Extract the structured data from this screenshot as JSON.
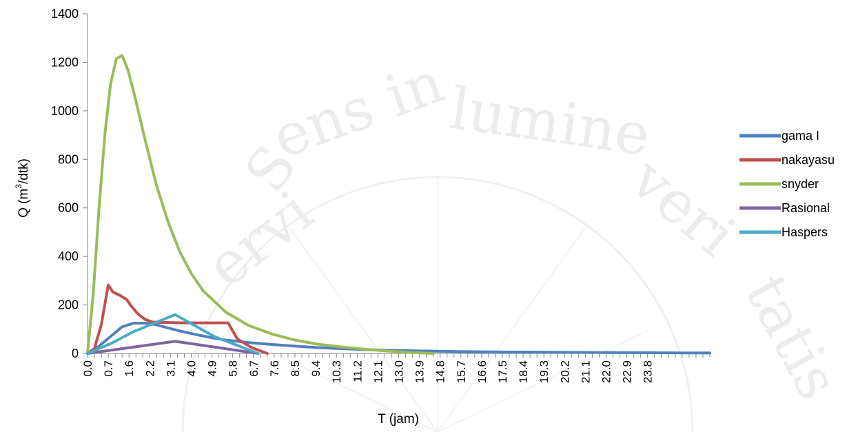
{
  "chart_data": {
    "type": "line",
    "xlabel": "T (jam)",
    "ylabel": "Q (m³/dtk)",
    "ylabel_parts": {
      "before": "Q (m",
      "sup": "3",
      "after": "/dtk)"
    },
    "ylim": [
      0,
      1400
    ],
    "yticks": [
      0,
      200,
      400,
      600,
      800,
      1000,
      1200,
      1400
    ],
    "xlim": [
      0,
      27.0
    ],
    "xtick_labels": [
      "0.0",
      "0.7",
      "1.6",
      "2.2",
      "3.1",
      "4.0",
      "4.9",
      "5.8",
      "6.7",
      "7.6",
      "8.5",
      "9.4",
      "10.3",
      "11.2",
      "12.1",
      "13.0",
      "13.9",
      "14.8",
      "15.7",
      "16.6",
      "17.5",
      "18.4",
      "19.3",
      "20.2",
      "21.1",
      "22.0",
      "22.9",
      "23.8"
    ],
    "xtick_positions": [
      0.0,
      0.9,
      1.8,
      2.7,
      3.6,
      4.5,
      5.4,
      6.3,
      7.2,
      8.1,
      9.0,
      9.9,
      10.8,
      11.7,
      12.6,
      13.5,
      14.4,
      15.3,
      16.2,
      17.1,
      18.0,
      18.9,
      19.8,
      20.7,
      21.6,
      22.5,
      23.4,
      24.3
    ],
    "grid": false,
    "legend_position": "right",
    "series": [
      {
        "name": "gama I",
        "color": "#4f81bd",
        "x": [
          0,
          0.5,
          1.0,
          1.5,
          2.0,
          2.5,
          3.0,
          3.5,
          4.0,
          4.5,
          5.0,
          5.5,
          6.0,
          7.0,
          8.0,
          9.0,
          10.0,
          11.0,
          12.0,
          13.0,
          14.0,
          16.0,
          18.0,
          20.0,
          22.0,
          24.0,
          26.0,
          27.0
        ],
        "values": [
          0,
          30,
          70,
          110,
          125,
          125,
          118,
          105,
          93,
          82,
          72,
          63,
          55,
          45,
          37,
          30,
          24,
          20,
          16,
          13,
          11,
          8,
          6,
          5,
          4,
          3,
          2,
          2
        ]
      },
      {
        "name": "nakayasu",
        "color": "#c0504d",
        "x": [
          0,
          0.3,
          0.6,
          0.9,
          1.1,
          1.4,
          1.7,
          1.9,
          2.2,
          2.5,
          2.8,
          3.1,
          3.7,
          4.3,
          4.9,
          5.5,
          6.1,
          6.5,
          7.1,
          7.8
        ],
        "values": [
          0,
          20,
          120,
          282,
          253,
          240,
          222,
          195,
          162,
          140,
          130,
          128,
          127,
          126,
          126,
          126,
          126,
          60,
          25,
          0
        ]
      },
      {
        "name": "snyder",
        "color": "#9bbb59",
        "x": [
          0,
          0.25,
          0.5,
          0.75,
          1.0,
          1.25,
          1.5,
          1.75,
          2.0,
          2.5,
          3.0,
          3.5,
          4.0,
          4.5,
          5.0,
          6.0,
          7.0,
          8.0,
          9.0,
          10.0,
          11.0,
          12.0,
          13.0,
          14.0,
          15.0
        ],
        "values": [
          0,
          250,
          600,
          900,
          1110,
          1215,
          1228,
          1170,
          1080,
          880,
          690,
          540,
          420,
          330,
          260,
          170,
          115,
          80,
          55,
          38,
          27,
          18,
          10,
          4,
          0
        ]
      },
      {
        "name": "Rasional",
        "color": "#8064a2",
        "x": [
          0,
          3.8,
          7.4
        ],
        "values": [
          0,
          50,
          0
        ]
      },
      {
        "name": "Haspers",
        "color": "#4bacc6",
        "x": [
          0,
          1.0,
          2.0,
          3.8,
          5.5,
          7.4
        ],
        "values": [
          0,
          40,
          90,
          160,
          70,
          0
        ]
      }
    ]
  }
}
